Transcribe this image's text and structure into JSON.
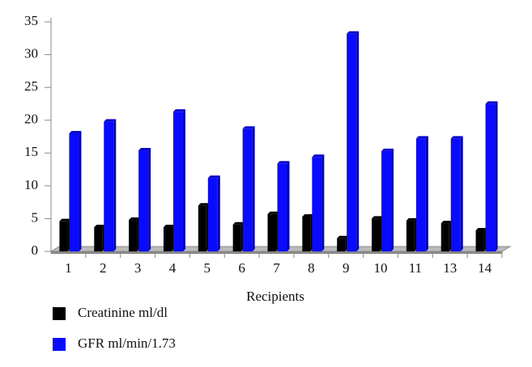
{
  "chart_data": {
    "type": "bar",
    "x_label": "Recipients",
    "categories": [
      "1",
      "2",
      "3",
      "4",
      "5",
      "6",
      "7",
      "8",
      "9",
      "10",
      "11",
      "13",
      "14"
    ],
    "series": [
      {
        "name": "Creatinine ml/dl",
        "color": "#000000",
        "values": [
          4.6,
          3.7,
          4.8,
          3.7,
          7.0,
          4.1,
          5.7,
          5.3,
          2.0,
          5.0,
          4.7,
          4.3,
          3.2
        ]
      },
      {
        "name": "GFR ml/min/1.73",
        "color": "#0a0aff",
        "values": [
          18.0,
          19.8,
          15.4,
          21.3,
          11.2,
          18.7,
          13.4,
          14.4,
          33.2,
          15.3,
          17.2,
          17.2,
          22.5
        ]
      }
    ],
    "ylim": [
      0,
      35
    ],
    "yticks": [
      0,
      5,
      10,
      15,
      20,
      25,
      30,
      35
    ]
  }
}
